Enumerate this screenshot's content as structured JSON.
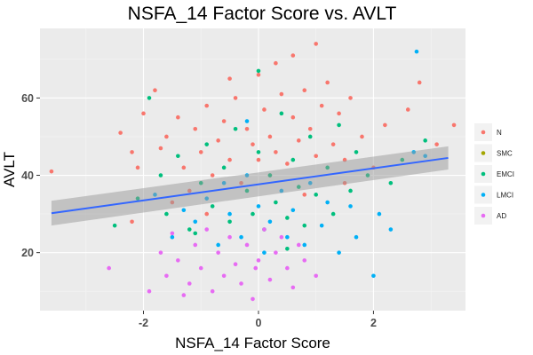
{
  "chart_data": {
    "type": "scatter",
    "title": "NSFA_14 Factor Score vs. AVLT",
    "xlabel": "NSFA_14 Factor Score",
    "ylabel": "AVLT",
    "xlim": [
      -3.8,
      3.6
    ],
    "ylim": [
      5,
      78
    ],
    "x_ticks": [
      -2,
      0,
      2
    ],
    "x_tick_labels": [
      "-2",
      "0",
      "2"
    ],
    "y_ticks": [
      20,
      40,
      60
    ],
    "y_tick_labels": [
      "20",
      "40",
      "60"
    ],
    "grid": true,
    "legend_position": "right",
    "series": [
      {
        "name": "N",
        "color": "#F8766D",
        "points": [
          [
            -3.6,
            41
          ],
          [
            -2.4,
            51
          ],
          [
            -2.2,
            46
          ],
          [
            -2.2,
            28
          ],
          [
            -2.1,
            42
          ],
          [
            -2.0,
            56
          ],
          [
            -1.8,
            62
          ],
          [
            -1.7,
            47
          ],
          [
            -1.6,
            50
          ],
          [
            -1.4,
            55
          ],
          [
            -1.3,
            42
          ],
          [
            -1.2,
            36
          ],
          [
            -1.1,
            52
          ],
          [
            -1.0,
            46
          ],
          [
            -0.9,
            58
          ],
          [
            -0.8,
            40
          ],
          [
            -0.7,
            49
          ],
          [
            -0.6,
            54
          ],
          [
            -0.5,
            44
          ],
          [
            -0.4,
            60
          ],
          [
            -0.3,
            38
          ],
          [
            -0.2,
            52
          ],
          [
            -0.1,
            48
          ],
          [
            0.0,
            66
          ],
          [
            0.0,
            44
          ],
          [
            0.1,
            57
          ],
          [
            0.2,
            50
          ],
          [
            0.2,
            40
          ],
          [
            0.3,
            46
          ],
          [
            0.4,
            61
          ],
          [
            0.5,
            43
          ],
          [
            0.6,
            55
          ],
          [
            0.7,
            49
          ],
          [
            0.8,
            62
          ],
          [
            0.9,
            52
          ],
          [
            1.0,
            45
          ],
          [
            1.1,
            58
          ],
          [
            1.2,
            64
          ],
          [
            1.3,
            48
          ],
          [
            1.4,
            56
          ],
          [
            1.5,
            44
          ],
          [
            1.6,
            60
          ],
          [
            1.8,
            50
          ],
          [
            2.0,
            42
          ],
          [
            2.2,
            53
          ],
          [
            2.6,
            57
          ],
          [
            2.8,
            64
          ],
          [
            3.1,
            48
          ],
          [
            3.4,
            53
          ],
          [
            -0.5,
            65
          ],
          [
            0.3,
            69
          ],
          [
            1.0,
            74
          ],
          [
            0.6,
            71
          ],
          [
            -1.5,
            33
          ],
          [
            0.8,
            35
          ],
          [
            -0.9,
            30
          ],
          [
            1.5,
            38
          ]
        ]
      },
      {
        "name": "SMC",
        "color": "#A3A500",
        "points": []
      },
      {
        "name": "EMCI",
        "color": "#00BF7D",
        "points": [
          [
            -2.5,
            27
          ],
          [
            -2.1,
            34
          ],
          [
            -1.9,
            60
          ],
          [
            -1.7,
            40
          ],
          [
            -1.6,
            30
          ],
          [
            -1.4,
            45
          ],
          [
            -1.2,
            26
          ],
          [
            -1.0,
            38
          ],
          [
            -0.9,
            48
          ],
          [
            -0.8,
            32
          ],
          [
            -0.6,
            42
          ],
          [
            -0.5,
            28
          ],
          [
            -0.4,
            52
          ],
          [
            -0.2,
            36
          ],
          [
            -0.1,
            30
          ],
          [
            0.0,
            46
          ],
          [
            0.1,
            26
          ],
          [
            0.2,
            40
          ],
          [
            0.3,
            33
          ],
          [
            0.4,
            56
          ],
          [
            0.5,
            29
          ],
          [
            0.6,
            44
          ],
          [
            0.7,
            37
          ],
          [
            0.8,
            27
          ],
          [
            0.9,
            50
          ],
          [
            1.0,
            35
          ],
          [
            1.2,
            42
          ],
          [
            1.3,
            30
          ],
          [
            1.4,
            53
          ],
          [
            1.6,
            36
          ],
          [
            1.7,
            46
          ],
          [
            1.9,
            40
          ],
          [
            2.3,
            38
          ],
          [
            2.5,
            44
          ],
          [
            2.9,
            49
          ],
          [
            0.0,
            67
          ],
          [
            -1.1,
            25
          ],
          [
            0.5,
            21
          ]
        ]
      },
      {
        "name": "LMCI",
        "color": "#00B0F6",
        "points": [
          [
            -1.8,
            35
          ],
          [
            -1.5,
            24
          ],
          [
            -1.3,
            31
          ],
          [
            -1.1,
            28
          ],
          [
            -0.9,
            34
          ],
          [
            -0.7,
            22
          ],
          [
            -0.6,
            38
          ],
          [
            -0.5,
            30
          ],
          [
            -0.3,
            24
          ],
          [
            -0.2,
            40
          ],
          [
            0.0,
            32
          ],
          [
            0.1,
            20
          ],
          [
            0.2,
            28
          ],
          [
            0.4,
            36
          ],
          [
            0.5,
            24
          ],
          [
            0.6,
            31
          ],
          [
            0.8,
            22
          ],
          [
            0.9,
            38
          ],
          [
            1.1,
            27
          ],
          [
            1.2,
            33
          ],
          [
            1.4,
            20
          ],
          [
            1.6,
            32
          ],
          [
            1.7,
            24
          ],
          [
            2.0,
            14
          ],
          [
            2.1,
            30
          ],
          [
            2.3,
            26
          ],
          [
            2.7,
            46
          ],
          [
            2.9,
            45
          ],
          [
            2.75,
            72
          ],
          [
            -0.2,
            54
          ]
        ]
      },
      {
        "name": "AD",
        "color": "#E76BF3",
        "points": [
          [
            -2.6,
            16
          ],
          [
            -1.9,
            10
          ],
          [
            -1.7,
            20
          ],
          [
            -1.6,
            14
          ],
          [
            -1.5,
            25
          ],
          [
            -1.4,
            18
          ],
          [
            -1.2,
            12
          ],
          [
            -1.1,
            22
          ],
          [
            -1.0,
            16
          ],
          [
            -0.9,
            26
          ],
          [
            -0.8,
            10
          ],
          [
            -0.7,
            20
          ],
          [
            -0.6,
            14
          ],
          [
            -0.5,
            24
          ],
          [
            -0.4,
            17
          ],
          [
            -0.3,
            12
          ],
          [
            -0.2,
            22
          ],
          [
            -0.1,
            8
          ],
          [
            0.0,
            18
          ],
          [
            0.1,
            26
          ],
          [
            0.2,
            13
          ],
          [
            0.3,
            20
          ],
          [
            0.4,
            24
          ],
          [
            0.5,
            16
          ],
          [
            0.6,
            11
          ],
          [
            0.7,
            22
          ],
          [
            0.8,
            18
          ],
          [
            1.0,
            14
          ],
          [
            -1.3,
            9
          ],
          [
            -0.05,
            16
          ]
        ]
      }
    ],
    "trend": {
      "type": "linear",
      "color": "#3366FF",
      "x": [
        -3.6,
        3.3
      ],
      "y": [
        30.2,
        44.5
      ],
      "ci_low": [
        27.0,
        41.5
      ],
      "ci_high": [
        33.4,
        47.5
      ]
    }
  }
}
